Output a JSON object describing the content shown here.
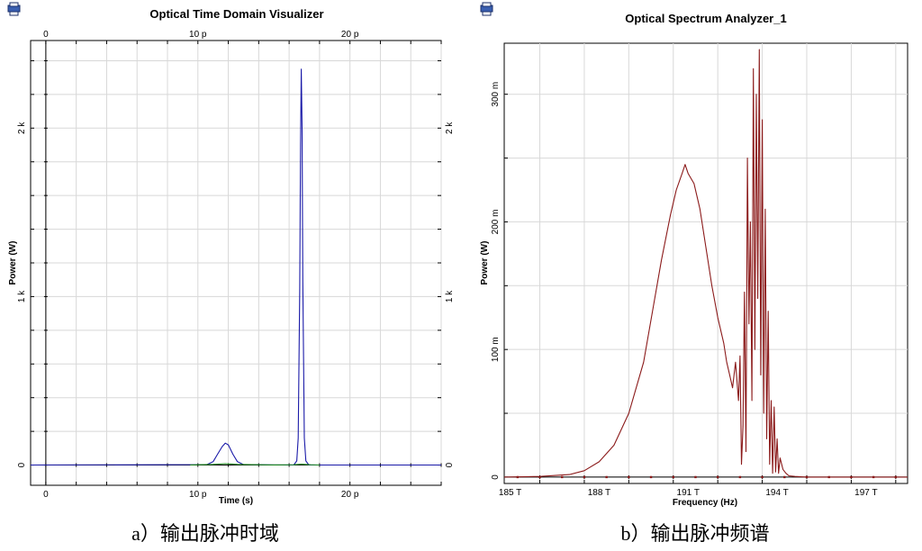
{
  "colors": {
    "time_series_blue": "#1a1aa8",
    "time_series_green": "#1f8a1f",
    "spectrum_series": "#8b1a1a",
    "grid": "#d8d8d8"
  },
  "icons": [
    "printer-icon",
    "printer-icon"
  ],
  "left_panel": {
    "caption": "a）输出脉冲时域"
  },
  "right_panel": {
    "caption": "b）输出脉冲频谱"
  },
  "chart_data": [
    {
      "type": "line",
      "title": "Optical Time Domain Visualizer",
      "xlabel": "Time (s)",
      "ylabel": "Power (W)",
      "xlim": [
        -1,
        26
      ],
      "ylim": [
        -120,
        2520
      ],
      "x_unit": "ps",
      "y_unit": "W",
      "xticks": [
        {
          "v": 0,
          "label": "0"
        },
        {
          "v": 10,
          "label": "10 p"
        },
        {
          "v": 20,
          "label": "20 p"
        }
      ],
      "yticks": [
        {
          "v": 0,
          "label": "0"
        },
        {
          "v": 1000,
          "label": "1 k"
        },
        {
          "v": 2000,
          "label": "2 k"
        }
      ],
      "grid": true,
      "series": [
        {
          "color": "#1a1aa8",
          "x": [
            -1,
            10.6,
            11.0,
            11.3,
            11.6,
            11.8,
            12.0,
            12.3,
            12.6,
            13.0,
            16.3,
            16.5,
            16.6,
            16.7,
            16.75,
            16.8,
            16.85,
            16.9,
            17.0,
            17.1,
            17.3,
            26
          ],
          "y": [
            0,
            3,
            20,
            65,
            110,
            130,
            120,
            65,
            20,
            3,
            0,
            25,
            160,
            1050,
            1900,
            2350,
            2000,
            1100,
            160,
            25,
            0,
            0
          ]
        },
        {
          "color": "#1f8a1f",
          "x": [
            9.5,
            11.0,
            11.8,
            12.6,
            15.0,
            16.3,
            16.8,
            17.4,
            18.0
          ],
          "y": [
            1,
            4,
            8,
            4,
            1,
            2,
            5,
            2,
            0
          ]
        }
      ]
    },
    {
      "type": "line",
      "title": "Optical Spectrum Analyzer_1",
      "xlabel": "Frequency (Hz)",
      "ylabel": "Power (W)",
      "xlim": [
        184.8,
        198.4
      ],
      "ylim": [
        -0.005,
        0.34
      ],
      "x_unit": "THz",
      "y_unit": "W",
      "xticks": [
        {
          "v": 185,
          "label": "185 T"
        },
        {
          "v": 188,
          "label": "188 T"
        },
        {
          "v": 191,
          "label": "191 T"
        },
        {
          "v": 194,
          "label": "194 T"
        },
        {
          "v": 197,
          "label": "197 T"
        }
      ],
      "yticks": [
        {
          "v": 0,
          "label": "0"
        },
        {
          "v": 0.1,
          "label": "100 m"
        },
        {
          "v": 0.2,
          "label": "200 m"
        },
        {
          "v": 0.3,
          "label": "300 m"
        }
      ],
      "grid": true,
      "series": [
        {
          "color": "#8b1a1a",
          "x": [
            184.8,
            186.0,
            187.0,
            187.5,
            188.0,
            188.5,
            189.0,
            189.5,
            189.8,
            190.1,
            190.4,
            190.6,
            190.8,
            190.9,
            191.0,
            191.2,
            191.4,
            191.6,
            191.8,
            192.0,
            192.2,
            192.3,
            192.4,
            192.5,
            192.6,
            192.7,
            192.75,
            192.8,
            192.85,
            192.9,
            192.95,
            193.0,
            193.05,
            193.1,
            193.15,
            193.2,
            193.25,
            193.3,
            193.35,
            193.4,
            193.45,
            193.5,
            193.55,
            193.6,
            193.65,
            193.7,
            193.75,
            193.8,
            193.85,
            193.9,
            193.95,
            194.0,
            194.05,
            194.1,
            194.2,
            194.3,
            194.4,
            194.6,
            195.0,
            196.0,
            198.4
          ],
          "y": [
            0,
            0.0005,
            0.002,
            0.005,
            0.012,
            0.025,
            0.05,
            0.09,
            0.13,
            0.17,
            0.205,
            0.225,
            0.238,
            0.245,
            0.238,
            0.23,
            0.21,
            0.18,
            0.15,
            0.125,
            0.105,
            0.09,
            0.08,
            0.07,
            0.09,
            0.06,
            0.095,
            0.01,
            0.04,
            0.145,
            0.02,
            0.25,
            0.12,
            0.2,
            0.06,
            0.32,
            0.1,
            0.3,
            0.14,
            0.335,
            0.08,
            0.28,
            0.05,
            0.21,
            0.03,
            0.13,
            0.01,
            0.06,
            0.003,
            0.055,
            0.004,
            0.03,
            0.003,
            0.015,
            0.006,
            0.003,
            0.001,
            0.0005,
            0,
            0,
            0
          ]
        }
      ]
    }
  ]
}
